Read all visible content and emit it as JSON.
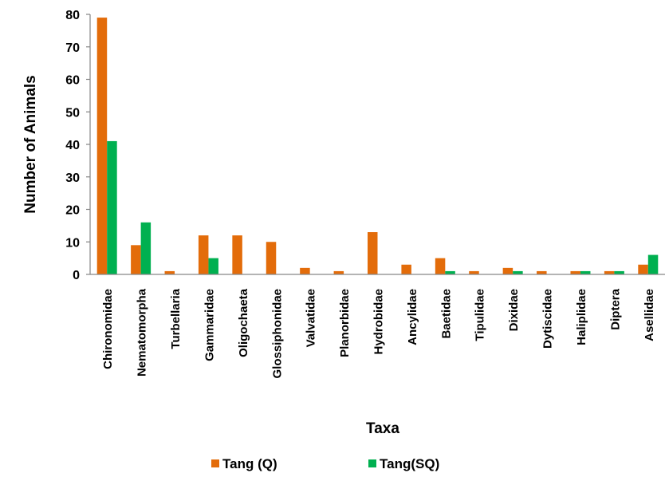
{
  "chart_data": {
    "type": "bar",
    "title": "",
    "xlabel": "Taxa",
    "ylabel": "Number of Animals",
    "ylim": [
      0,
      80
    ],
    "yticks": [
      0,
      10,
      20,
      30,
      40,
      50,
      60,
      70,
      80
    ],
    "grid": false,
    "legend_position": "bottom",
    "categories": [
      "Chironomidae",
      "Nematomorpha",
      "Turbellaria",
      "Gammaridae",
      "Oligochaeta",
      "Glossiphonidae",
      "Valvatidae",
      "Planorbidae",
      "Hydrobidae",
      "Ancylidae",
      "Baetidae",
      "Tipulidae",
      "Dixidae",
      "Dytiscidae",
      "Haliplidae",
      "Diptera",
      "Asellidae"
    ],
    "series": [
      {
        "name": "Tang (Q)",
        "color": "#E36C0A",
        "values": [
          79,
          9,
          1,
          12,
          12,
          10,
          2,
          1,
          13,
          3,
          5,
          1,
          2,
          1,
          1,
          1,
          3
        ]
      },
      {
        "name": "Tang(SQ)",
        "color": "#00B050",
        "values": [
          41,
          16,
          0,
          5,
          0,
          0,
          0,
          0,
          0,
          0,
          1,
          0,
          1,
          0,
          1,
          1,
          6
        ]
      }
    ]
  }
}
